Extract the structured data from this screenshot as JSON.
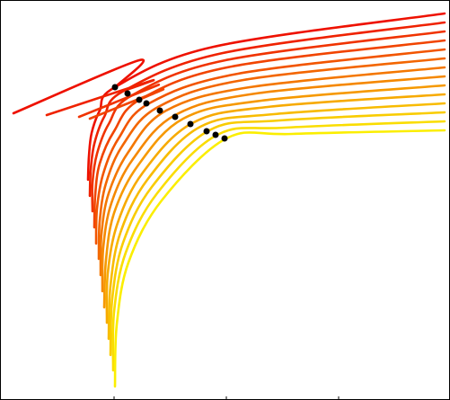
{
  "chart_data": [
    {
      "type": "line",
      "xlim": [
        0,
        501
      ],
      "ylim": [
        0,
        445
      ],
      "xticks": [
        127,
        252,
        377
      ],
      "series": [
        {
          "color": "#ee1100",
          "x": [
            15,
            155,
            128,
            null,
            98,
            99,
            102,
            111,
            128,
            238,
            495
          ],
          "values": [
            319,
            378,
            348,
            null,
            245,
            271,
            297,
            322,
            348,
            393,
            430
          ]
        },
        {
          "color": "#ef2200",
          "x": [
            52,
            168,
            138,
            null,
            100,
            101,
            105,
            116,
            138,
            248,
            495
          ],
          "values": [
            317,
            355,
            344,
            null,
            227,
            256,
            285,
            315,
            344,
            386,
            420
          ]
        },
        {
          "color": "#f03300",
          "x": [
            88,
            175,
            147,
            null,
            103,
            103,
            108,
            121,
            147,
            251,
            495
          ],
          "values": [
            315,
            350,
            339,
            null,
            210,
            242,
            274,
            307,
            339,
            378,
            410
          ]
        },
        {
          "color": "#f14400",
          "x": [
            100,
            180,
            157,
            null,
            105,
            106,
            111,
            127,
            157,
            258,
            495
          ],
          "values": [
            313,
            345,
            335,
            null,
            192,
            228,
            263,
            299,
            335,
            371,
            400
          ]
        },
        {
          "color": "#f25500",
          "x": [
            107,
            108,
            115,
            132,
            166,
            265,
            495
          ],
          "values": [
            174,
            213,
            252,
            291,
            330,
            363,
            390
          ]
        },
        {
          "color": "#f36600",
          "x": [
            110,
            111,
            118,
            137,
            176,
            271,
            495
          ],
          "values": [
            157,
            199,
            241,
            284,
            326,
            356,
            380
          ]
        },
        {
          "color": "#f47700",
          "x": [
            112,
            113,
            121,
            143,
            185,
            278,
            495
          ],
          "values": [
            139,
            185,
            230,
            276,
            322,
            348,
            370
          ]
        },
        {
          "color": "#f58800",
          "x": [
            114,
            115,
            124,
            148,
            195,
            285,
            495
          ],
          "values": [
            121,
            170,
            219,
            268,
            317,
            341,
            360
          ]
        },
        {
          "color": "#f69900",
          "x": [
            116,
            118,
            127,
            153,
            204,
            291,
            495
          ],
          "values": [
            103,
            156,
            208,
            260,
            313,
            333,
            350
          ]
        },
        {
          "color": "#f7aa00",
          "x": [
            119,
            120,
            131,
            159,
            214,
            298,
            495
          ],
          "values": [
            86,
            141,
            197,
            253,
            308,
            326,
            340
          ]
        },
        {
          "color": "#f8bb00",
          "x": [
            121,
            123,
            134,
            164,
            223,
            305,
            495
          ],
          "values": [
            68,
            127,
            186,
            245,
            304,
            318,
            330
          ]
        },
        {
          "color": "#f9cc00",
          "x": [
            123,
            125,
            137,
            169,
            233,
            311,
            495
          ],
          "values": [
            50,
            113,
            175,
            237,
            300,
            311,
            320
          ]
        },
        {
          "color": "#fadd00",
          "x": [
            126,
            127,
            140,
            175,
            242,
            318,
            495
          ],
          "values": [
            33,
            98,
            164,
            230,
            295,
            303,
            310
          ]
        },
        {
          "color": "#fbee00",
          "x": [
            128,
            130,
            143,
            180,
            252,
            325,
            495
          ],
          "values": [
            15,
            84,
            153,
            222,
            291,
            296,
            300
          ]
        }
      ]
    },
    {
      "type": "scatter",
      "xlim": [
        0,
        501
      ],
      "ylim": [
        0,
        445
      ],
      "color": "#000000",
      "x": [
        128,
        142,
        155,
        163,
        178,
        195,
        212,
        230,
        240,
        250
      ],
      "values": [
        348,
        341,
        334,
        330,
        322,
        315,
        307,
        299,
        295,
        291
      ]
    }
  ]
}
